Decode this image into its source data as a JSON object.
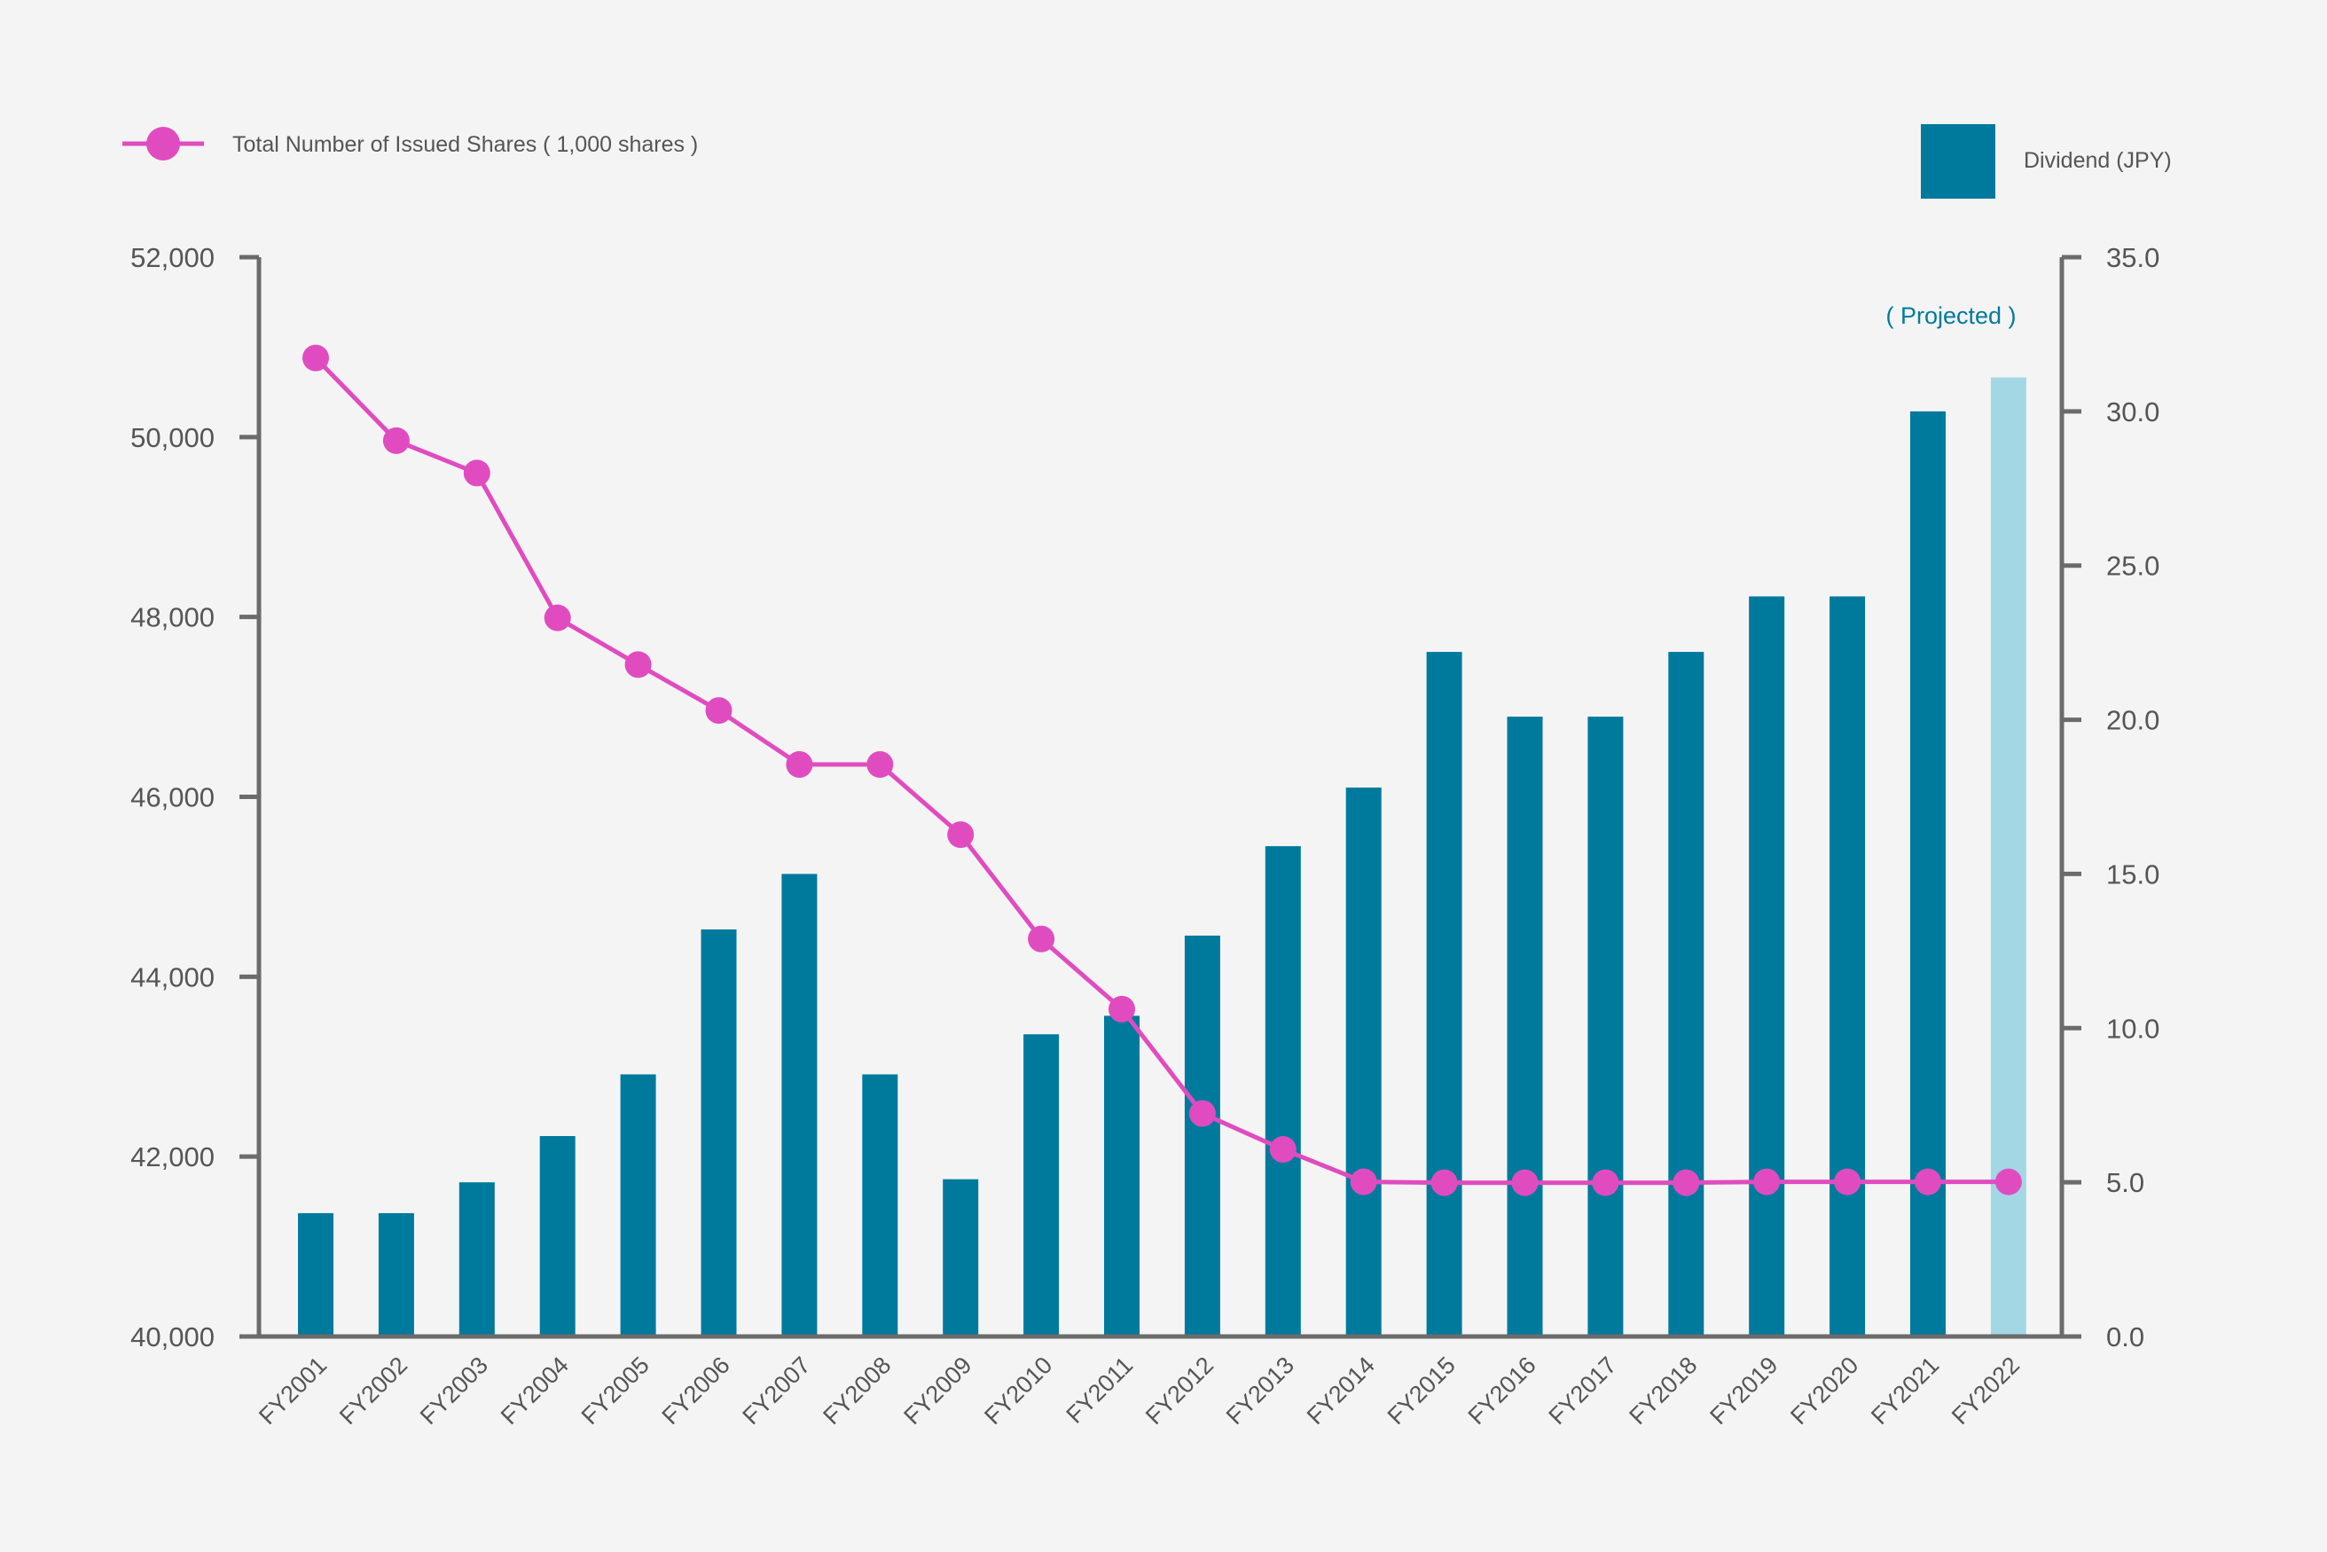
{
  "chart_data": {
    "type": "bar+line",
    "categories": [
      "FY2001",
      "FY2002",
      "FY2003",
      "FY2004",
      "FY2005",
      "FY2006",
      "FY2007",
      "FY2008",
      "FY2009",
      "FY2010",
      "FY2011",
      "FY2012",
      "FY2013",
      "FY2014",
      "FY2015",
      "FY2016",
      "FY2017",
      "FY2018",
      "FY2019",
      "FY2020",
      "FY2021",
      "FY2022"
    ],
    "series": [
      {
        "name": "Dividend (JPY)",
        "kind": "bar",
        "axis": "right",
        "color": "#007a9c",
        "projected_color": "#a3d7e4",
        "values": [
          4.0,
          4.0,
          5.0,
          6.5,
          8.5,
          13.2,
          15.0,
          8.5,
          5.1,
          9.8,
          10.4,
          13.0,
          15.9,
          17.8,
          22.2,
          20.1,
          20.1,
          22.2,
          24.0,
          24.0,
          30.0,
          31.1
        ]
      },
      {
        "name": "Total Number of Issued Shares ( 1,000 shares )",
        "kind": "line",
        "axis": "left",
        "color": "#e04cc0",
        "values": [
          50880,
          49960,
          49600,
          47990,
          47470,
          46960,
          46360,
          46360,
          45580,
          44420,
          43640,
          42480,
          42080,
          41720,
          41710,
          41710,
          41710,
          41710,
          41720,
          41720,
          41720,
          41720
        ]
      }
    ],
    "projected_category": "FY2022",
    "projected_note": "( Projected )",
    "left_axis": {
      "ylim": [
        40000,
        52000
      ],
      "ticks": [
        40000,
        42000,
        44000,
        46000,
        48000,
        50000,
        52000
      ],
      "tick_labels": [
        "40,000",
        "42,000",
        "44,000",
        "46,000",
        "48,000",
        "50,000",
        "52,000"
      ]
    },
    "right_axis": {
      "ylim": [
        0,
        35
      ],
      "ticks": [
        0,
        5,
        10,
        15,
        20,
        25,
        30,
        35
      ],
      "tick_labels": [
        "0.0",
        "5.0",
        "10.0",
        "15.0",
        "20.0",
        "25.0",
        "30.0",
        "35.0"
      ]
    },
    "legend": {
      "line_label": "Total Number of Issued Shares ( 1,000 shares )",
      "bar_label": "Dividend (JPY)",
      "line_position": "top-left",
      "bar_position": "top-right"
    },
    "colors": {
      "axis": "#6b6b6b",
      "note": "#007a9c"
    }
  }
}
